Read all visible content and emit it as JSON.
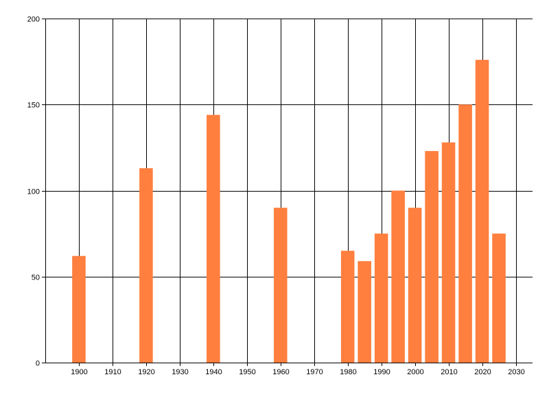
{
  "chart_data": {
    "type": "bar",
    "x": [
      1900,
      1920,
      1940,
      1960,
      1980,
      1985,
      1990,
      1995,
      2000,
      2005,
      2010,
      2015,
      2020,
      2025
    ],
    "values": [
      62,
      113,
      144,
      90,
      65,
      59,
      75,
      100,
      90,
      123,
      128,
      150,
      176,
      75
    ],
    "xlim": [
      1890,
      2035
    ],
    "ylim": [
      0,
      200
    ],
    "x_ticks": [
      1900,
      1910,
      1920,
      1930,
      1940,
      1950,
      1960,
      1970,
      1980,
      1990,
      2000,
      2010,
      2020,
      2030
    ],
    "y_ticks": [
      0,
      50,
      100,
      150,
      200
    ],
    "bar_width_years": 4,
    "grid": true,
    "legend": "none",
    "title": "",
    "xlabel": "",
    "ylabel": ""
  },
  "colors": {
    "bar": "#ff7f3f",
    "grid": "#000000",
    "axis": "#000000",
    "background": "#ffffff"
  }
}
